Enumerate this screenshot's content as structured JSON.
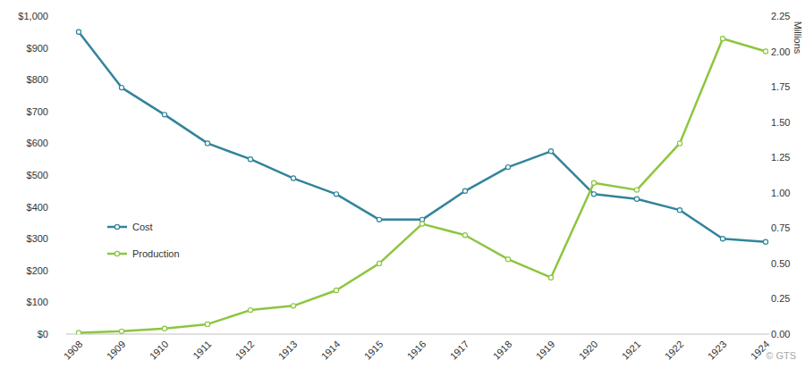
{
  "chart_data": {
    "type": "line",
    "categories": [
      "1908",
      "1909",
      "1910",
      "1911",
      "1912",
      "1913",
      "1914",
      "1915",
      "1916",
      "1917",
      "1918",
      "1919",
      "1920",
      "1921",
      "1922",
      "1923",
      "1924"
    ],
    "series": [
      {
        "name": "Cost",
        "color": "#31849b",
        "marker": "circle",
        "values": [
          950,
          775,
          690,
          600,
          550,
          490,
          440,
          360,
          360,
          450,
          525,
          575,
          440,
          425,
          390,
          300,
          290
        ]
      },
      {
        "name": "Production",
        "color": "#8cc63f",
        "marker": "circle",
        "axis": "y2",
        "values": [
          0.01,
          0.02,
          0.04,
          0.07,
          0.17,
          0.2,
          0.31,
          0.5,
          0.78,
          0.7,
          0.53,
          0.4,
          1.07,
          1.02,
          1.35,
          2.09,
          2.0
        ]
      }
    ],
    "ylim": [
      0,
      1000
    ],
    "yticks": [
      {
        "value": 0,
        "label": "$0"
      },
      {
        "value": 100,
        "label": "$100"
      },
      {
        "value": 200,
        "label": "$200"
      },
      {
        "value": 300,
        "label": "$300"
      },
      {
        "value": 400,
        "label": "$400"
      },
      {
        "value": 500,
        "label": "$500"
      },
      {
        "value": 600,
        "label": "$600"
      },
      {
        "value": 700,
        "label": "$700"
      },
      {
        "value": 800,
        "label": "$800"
      },
      {
        "value": 900,
        "label": "$900"
      },
      {
        "value": 1000,
        "label": "$1,000"
      }
    ],
    "y2label": "Millions",
    "y2lim": [
      0,
      2.25
    ],
    "y2ticks": [
      {
        "value": 0,
        "label": "0.00"
      },
      {
        "value": 0.25,
        "label": "0.25"
      },
      {
        "value": 0.5,
        "label": "0.50"
      },
      {
        "value": 0.75,
        "label": "0.75"
      },
      {
        "value": 1,
        "label": "1.00"
      },
      {
        "value": 1.25,
        "label": "1.25"
      },
      {
        "value": 1.5,
        "label": "1.50"
      },
      {
        "value": 1.75,
        "label": "1.75"
      },
      {
        "value": 2,
        "label": "2.00"
      },
      {
        "value": 2.25,
        "label": "2.25"
      }
    ],
    "grid": false,
    "legend": "left",
    "annotations": [
      "© GTS"
    ]
  }
}
